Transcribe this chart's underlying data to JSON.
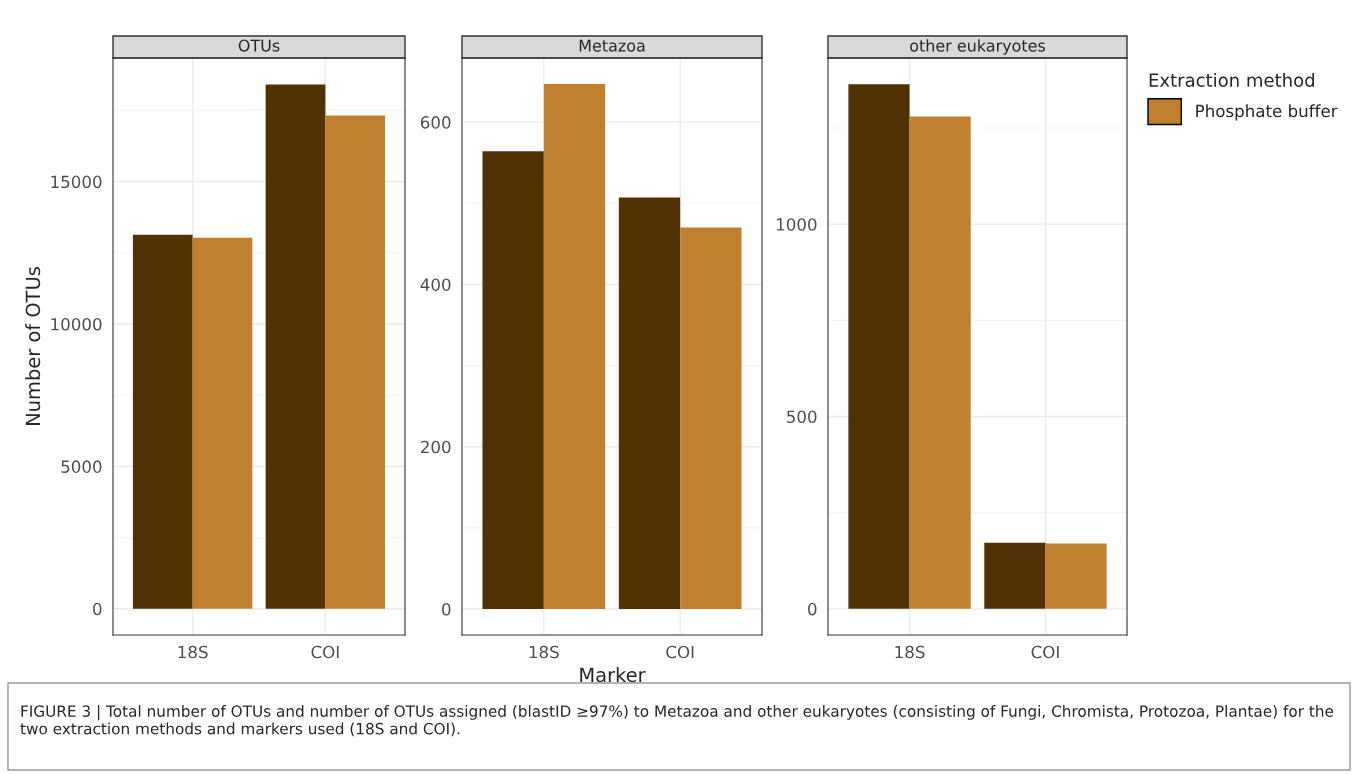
{
  "chart_data": [
    {
      "type": "bar",
      "title": "OTUs",
      "ylabel": "Number of OTUs",
      "categories": [
        "18S",
        "COI"
      ],
      "series": [
        {
          "color": "#523105",
          "values": [
            13130,
            18410
          ]
        },
        {
          "color": "#c08030",
          "values": [
            13030,
            17320
          ]
        }
      ],
      "ylim": [
        -920,
        19340
      ],
      "yticks": [
        0,
        5000,
        10000,
        15000
      ],
      "grid": true,
      "annotations": [
        "FIGURE 3 | Total number of OTUs and number of OTUs assigned (blastID ≥97%) to Metazoa and other eukaryotes (consisting of Fungi, Chromista, Protozoa, Plantae) for the two extraction methods and markers used (18S and COI)."
      ]
    },
    {
      "type": "bar",
      "title": "Metazoa",
      "xlabel": "Marker",
      "categories": [
        "18S",
        "COI"
      ],
      "series": [
        {
          "color": "#523105",
          "values": [
            564,
            507
          ]
        },
        {
          "color": "#c08030",
          "values": [
            647,
            470
          ]
        }
      ],
      "ylim": [
        -32,
        679
      ],
      "yticks": [
        0,
        200,
        400,
        600
      ],
      "grid": true
    },
    {
      "type": "bar",
      "title": "other eukaryotes",
      "categories": [
        "18S",
        "COI"
      ],
      "series": [
        {
          "color": "#523105",
          "values": [
            1364,
            172
          ]
        },
        {
          "name": "Phosphate buffer",
          "color": "#c08030",
          "values": [
            1280,
            170
          ]
        }
      ],
      "ylim": [
        -68,
        1432
      ],
      "yticks": [
        0,
        500,
        1000
      ],
      "grid": true,
      "legend": "right",
      "legend_title": "Extraction method"
    }
  ]
}
